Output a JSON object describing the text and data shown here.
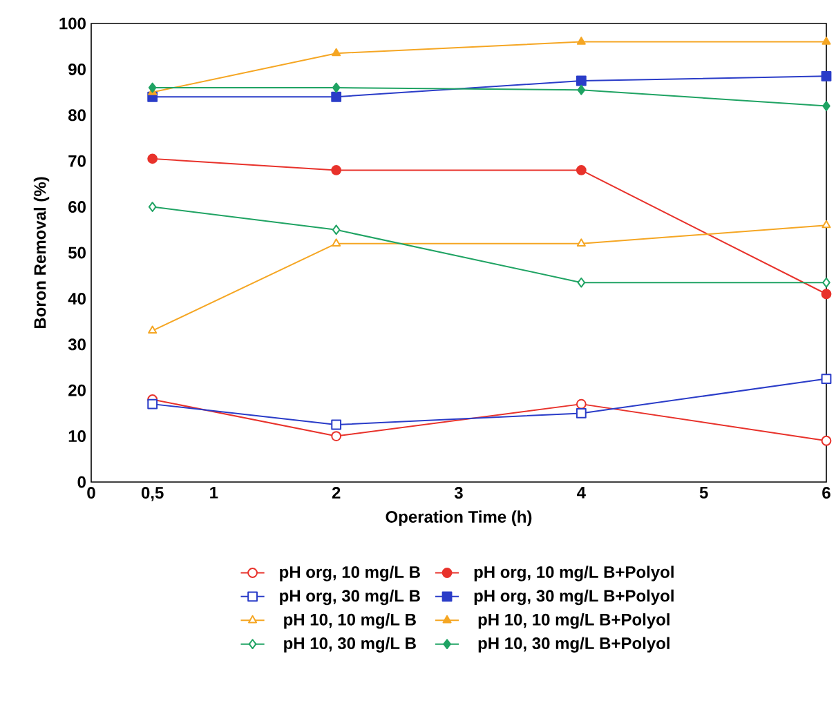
{
  "chart_data": {
    "type": "line",
    "xlabel": "Operation Time (h)",
    "ylabel": "Boron Removal (%)",
    "x": [
      0.5,
      2,
      4,
      6
    ],
    "xlim": [
      0,
      6
    ],
    "xticks": [
      0,
      {
        "value": 0.5,
        "label": "0,5"
      },
      1,
      2,
      3,
      4,
      5,
      6
    ],
    "ylim": [
      0,
      100
    ],
    "yticks": [
      0,
      10,
      20,
      30,
      40,
      50,
      60,
      70,
      80,
      90,
      100
    ],
    "grid": false,
    "legend": "bottom",
    "series": [
      {
        "name": "pH org, 10 mg/L B",
        "color": "#e8322b",
        "marker": "circle",
        "values": [
          18,
          10,
          17,
          9
        ]
      },
      {
        "name": "pH org, 10 mg/L B+Polyol",
        "color": "#e8322b",
        "marker": "circle",
        "values": [
          70.5,
          68,
          68,
          41
        ]
      },
      {
        "name": "pH org, 30 mg/L B",
        "color": "#2a3cc8",
        "marker": "square",
        "values": [
          17,
          12.5,
          15,
          22.5
        ]
      },
      {
        "name": "pH org, 30 mg/L B+Polyol",
        "color": "#2a3cc8",
        "marker": "square",
        "values": [
          84,
          84,
          87.5,
          88.5
        ]
      },
      {
        "name": "pH 10, 10 mg/L B",
        "color": "#f5a623",
        "marker": "triangle",
        "values": [
          33,
          52,
          52,
          56
        ]
      },
      {
        "name": "pH 10, 10 mg/L B+Polyol",
        "color": "#f5a623",
        "marker": "triangle",
        "values": [
          85,
          93.5,
          96,
          96
        ]
      },
      {
        "name": "pH 10, 30 mg/L B",
        "color": "#1fa363",
        "marker": "diamond",
        "values": [
          60,
          55,
          43.5,
          43.5
        ]
      },
      {
        "name": "pH 10, 30 mg/L B+Polyol",
        "color": "#1fa363",
        "marker": "diamond",
        "values": [
          86,
          86,
          85.5,
          82
        ]
      }
    ]
  }
}
